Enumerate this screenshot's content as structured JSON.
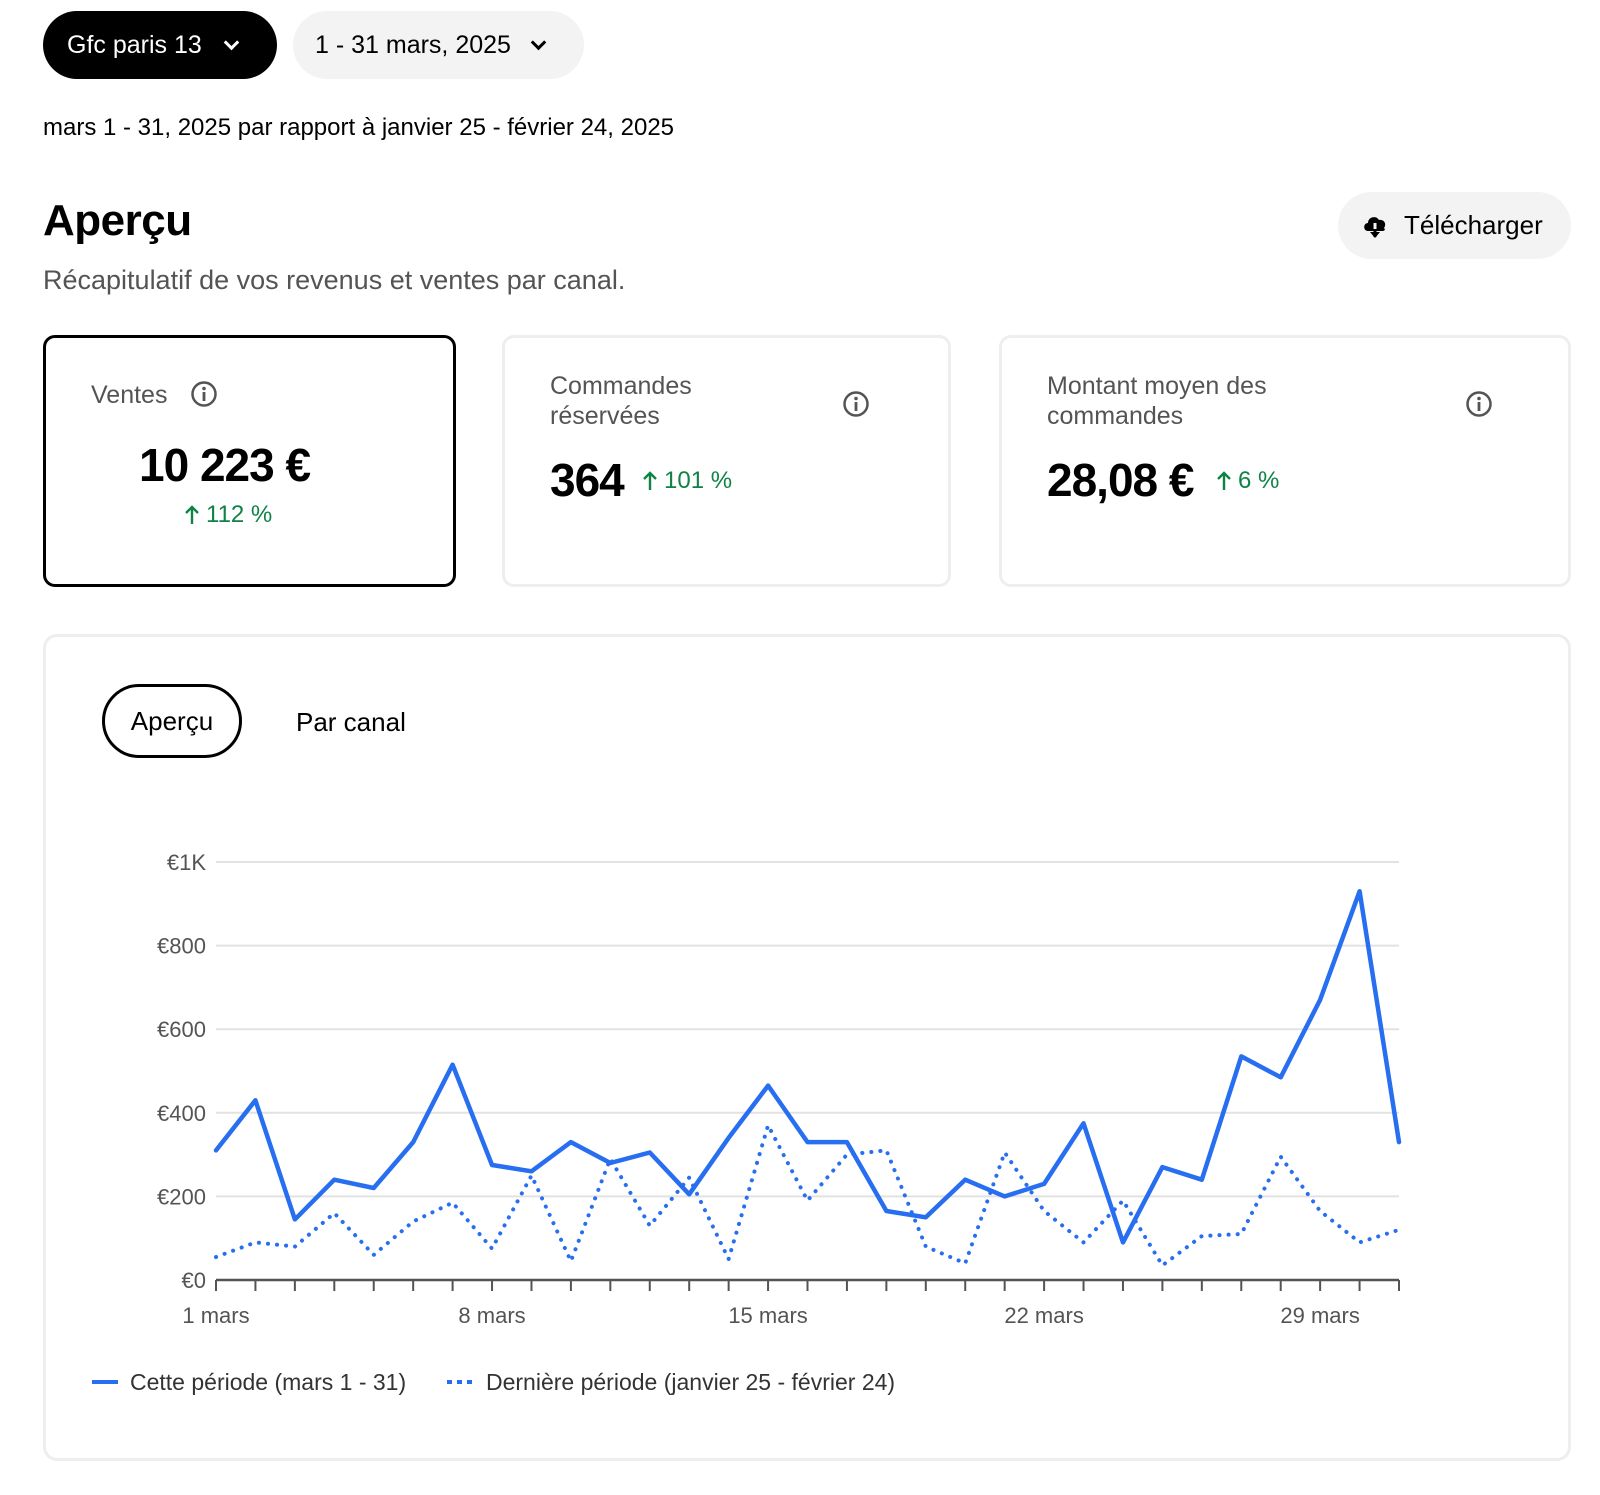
{
  "header": {
    "store_selector": "Gfc paris 13",
    "date_selector": "1 - 31 mars, 2025",
    "comparison_text": "mars 1 - 31, 2025 par rapport à janvier 25 - février 24, 2025"
  },
  "overview": {
    "title": "Aperçu",
    "subtitle": "Récapitulatif de vos revenus et ventes par canal.",
    "download_label": "Télécharger"
  },
  "kpis": {
    "sales": {
      "label": "Ventes",
      "value": "10 223 €",
      "delta": "112 %"
    },
    "orders": {
      "label_line1": "Commandes",
      "label_line2": "réservées",
      "value": "364",
      "delta": "101 %"
    },
    "avg_order": {
      "label_line1": "Montant moyen des",
      "label_line2": "commandes",
      "value": "28,08 €",
      "delta": "6 %"
    }
  },
  "tabs": {
    "overview": "Aperçu",
    "by_channel": "Par canal"
  },
  "colors": {
    "accent": "#276ef1",
    "positive": "#0e8345",
    "primary": "#000000"
  },
  "chart_data": {
    "type": "line",
    "title": "",
    "xlabel": "",
    "ylabel": "",
    "ylim": [
      0,
      1000
    ],
    "y_ticks": [
      "€0",
      "€200",
      "€400",
      "€600",
      "€800",
      "€1K"
    ],
    "x_tick_labels": [
      "1 mars",
      "8 mars",
      "15 mars",
      "22 mars",
      "29 mars"
    ],
    "x": [
      1,
      2,
      3,
      4,
      5,
      6,
      7,
      8,
      9,
      10,
      11,
      12,
      13,
      14,
      15,
      16,
      17,
      18,
      19,
      20,
      21,
      22,
      23,
      24,
      25,
      26,
      27,
      28,
      29,
      30,
      31
    ],
    "series": [
      {
        "name": "Cette période (mars 1 - 31)",
        "style": "solid",
        "values": [
          310,
          430,
          145,
          240,
          220,
          330,
          515,
          275,
          260,
          330,
          280,
          305,
          205,
          340,
          465,
          330,
          330,
          165,
          150,
          240,
          200,
          230,
          375,
          90,
          270,
          240,
          535,
          485,
          670,
          930,
          330
        ]
      },
      {
        "name": "Dernière période (janvier 25 - février 24)",
        "style": "dotted",
        "values": [
          55,
          90,
          80,
          160,
          60,
          140,
          185,
          75,
          250,
          45,
          290,
          130,
          245,
          50,
          370,
          190,
          300,
          310,
          80,
          40,
          305,
          165,
          90,
          190,
          35,
          105,
          110,
          295,
          165,
          90,
          120
        ]
      }
    ],
    "legend_position": "bottom-left",
    "grid": true
  }
}
